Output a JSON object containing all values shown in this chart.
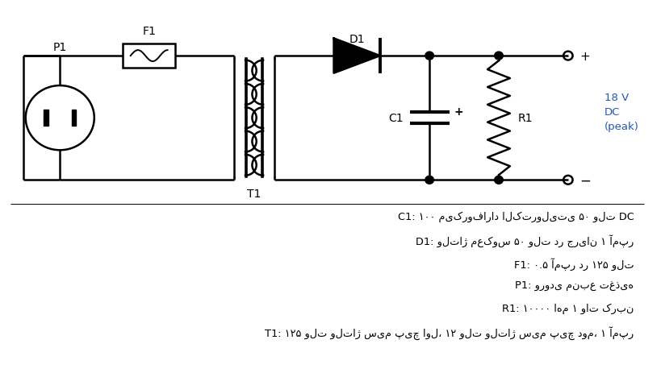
{
  "bg_color": "#ffffff",
  "line_color": "#000000",
  "text_color": "#000000",
  "figsize": [
    8.19,
    4.64
  ],
  "dpi": 100,
  "output_label": "18 V\nDC\n(peak)",
  "descriptions": [
    "C1: ۱۰۰ میکروفاراد الکترولیتی ۵۰ ولت DC",
    "D1: ولتاژ معکوس ۵۰ ولت در جریان ۱ آمپر",
    "F1: ۰.۵ آمپر در ۱۲۵ ولت",
    "P1: ورودی منبع تغذیه",
    "R1: ۱۰۰۰۰ اهم ۱ وات کربن",
    "T1: ۱۲۵ ولت ولتاژ سیم پیچ اول، ۱۲ ولت ولتاژ سیم پیچ دوم، ۱ آمپر"
  ]
}
